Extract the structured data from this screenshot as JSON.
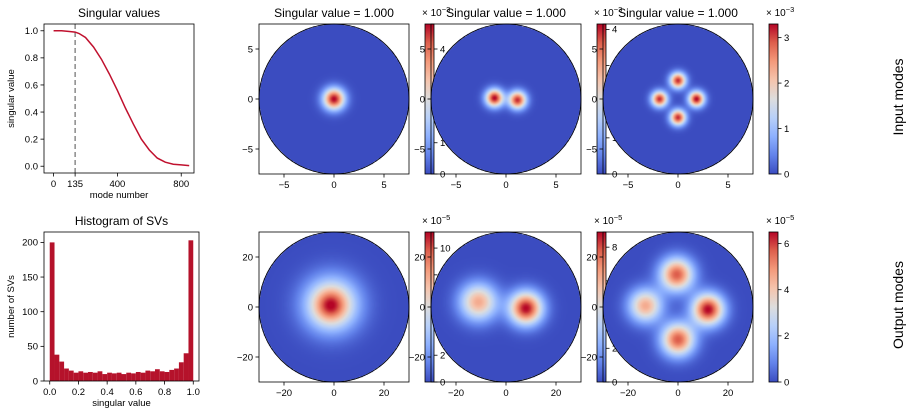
{
  "chart_data": [
    {
      "type": "line",
      "title": "Singular values",
      "xlabel": "mode number",
      "ylabel": "singular value",
      "xlim": [
        -60,
        880
      ],
      "ylim": [
        -0.05,
        1.05
      ],
      "xticks": [
        "0",
        "135",
        "400",
        "800"
      ],
      "yticks": [
        "0.0",
        "0.2",
        "0.4",
        "0.6",
        "0.8",
        "1.0"
      ],
      "vline": {
        "x": 135,
        "style": "dashed",
        "color": "#6e6e6e"
      },
      "color": "#c0112e",
      "x": [
        0,
        50,
        100,
        135,
        160,
        200,
        250,
        300,
        350,
        400,
        450,
        500,
        550,
        600,
        650,
        700,
        750,
        800,
        850
      ],
      "y": [
        1.0,
        1.0,
        0.995,
        0.99,
        0.98,
        0.95,
        0.88,
        0.79,
        0.68,
        0.56,
        0.43,
        0.31,
        0.2,
        0.12,
        0.06,
        0.03,
        0.015,
        0.01,
        0.005
      ]
    },
    {
      "type": "bar",
      "title": "Histogram of SVs",
      "xlabel": "singular value",
      "ylabel": "number of SVs",
      "xlim": [
        -0.04,
        1.04
      ],
      "ylim": [
        0,
        215
      ],
      "xticks": [
        "0.0",
        "0.2",
        "0.4",
        "0.6",
        "0.8",
        "1.0"
      ],
      "yticks": [
        "0",
        "50",
        "100",
        "150",
        "200"
      ],
      "color": "#b5122b",
      "bin_edges": [
        0.0,
        0.0333,
        0.0667,
        0.1,
        0.1333,
        0.1667,
        0.2,
        0.2333,
        0.2667,
        0.3,
        0.3333,
        0.3667,
        0.4,
        0.4333,
        0.4667,
        0.5,
        0.5333,
        0.5667,
        0.6,
        0.6333,
        0.6667,
        0.7,
        0.7333,
        0.7667,
        0.8,
        0.8333,
        0.8667,
        0.9,
        0.9333,
        0.9667,
        1.0
      ],
      "values": [
        200,
        38,
        28,
        18,
        15,
        12,
        14,
        12,
        13,
        12,
        14,
        10,
        12,
        11,
        12,
        10,
        12,
        11,
        13,
        12,
        15,
        14,
        17,
        14,
        13,
        16,
        18,
        27,
        40,
        203
      ]
    },
    {
      "type": "heatmap",
      "row": "input",
      "col": 0,
      "title": "Singular value = 1.000",
      "xlim": [
        -7.5,
        7.5
      ],
      "ylim": [
        -7.5,
        7.5
      ],
      "xticks": [
        -5,
        0,
        5
      ],
      "yticks": [
        -5,
        0,
        5
      ],
      "colorbar": {
        "max": 4.8,
        "ticks": [
          0,
          1,
          2,
          3,
          4
        ],
        "exponent_base": "× 10",
        "exponent": "−3"
      },
      "lobes": [
        {
          "x": 0,
          "y": 0,
          "sigma": 0.75,
          "amp": 1.0
        }
      ]
    },
    {
      "type": "heatmap",
      "row": "input",
      "col": 1,
      "title": "Singular value = 1.000",
      "xlim": [
        -7.5,
        7.5
      ],
      "ylim": [
        -7.5,
        7.5
      ],
      "xticks": [
        -5,
        0,
        5
      ],
      "yticks": [
        -5,
        0,
        5
      ],
      "colorbar": {
        "max": 4.15,
        "ticks": [
          0,
          1,
          2,
          3,
          4
        ],
        "exponent_base": "× 10",
        "exponent": "−3"
      },
      "lobes": [
        {
          "x": -1.15,
          "y": 0.1,
          "sigma": 0.62,
          "amp": 1.0
        },
        {
          "x": 1.15,
          "y": -0.1,
          "sigma": 0.62,
          "amp": 0.95
        }
      ]
    },
    {
      "type": "heatmap",
      "row": "input",
      "col": 2,
      "title": "Singular value = 1.000",
      "xlim": [
        -7.5,
        7.5
      ],
      "ylim": [
        -7.5,
        7.5
      ],
      "xticks": [
        -5,
        0,
        5
      ],
      "yticks": [
        -5,
        0,
        5
      ],
      "colorbar": {
        "max": 3.3,
        "ticks": [
          0,
          1,
          2,
          3
        ],
        "exponent_base": "× 10",
        "exponent": "−3"
      },
      "lobes": [
        {
          "x": 0,
          "y": 1.85,
          "sigma": 0.55,
          "amp": 0.95
        },
        {
          "x": 0,
          "y": -1.85,
          "sigma": 0.55,
          "amp": 0.95
        },
        {
          "x": -1.85,
          "y": 0,
          "sigma": 0.55,
          "amp": 0.95
        },
        {
          "x": 1.85,
          "y": 0,
          "sigma": 0.55,
          "amp": 1.0
        }
      ]
    },
    {
      "type": "heatmap",
      "row": "output",
      "col": 0,
      "title": "",
      "xlim": [
        -30,
        30
      ],
      "ylim": [
        -30,
        30
      ],
      "xticks": [
        -20,
        0,
        20
      ],
      "yticks": [
        -20,
        0,
        20
      ],
      "colorbar": {
        "max": 11.2,
        "ticks": [
          0,
          2,
          4,
          6,
          8,
          10
        ],
        "exponent_base": "× 10",
        "exponent": "−5"
      },
      "lobes": [
        {
          "x": -1,
          "y": 1,
          "sigma": 7.5,
          "amp": 0.72
        },
        {
          "x": -1.5,
          "y": 0.5,
          "sigma": 4.2,
          "amp": 0.3
        }
      ]
    },
    {
      "type": "heatmap",
      "row": "output",
      "col": 1,
      "title": "",
      "xlim": [
        -30,
        30
      ],
      "ylim": [
        -30,
        30
      ],
      "xticks": [
        -20,
        0,
        20
      ],
      "yticks": [
        -20,
        0,
        20
      ],
      "colorbar": {
        "max": 8.9,
        "ticks": [
          0,
          2,
          4,
          6,
          8
        ],
        "exponent_base": "× 10",
        "exponent": "−5"
      },
      "lobes": [
        {
          "x": -11,
          "y": 2,
          "sigma": 5.2,
          "amp": 0.7
        },
        {
          "x": 8,
          "y": -0.5,
          "sigma": 4.6,
          "amp": 1.0
        }
      ]
    },
    {
      "type": "heatmap",
      "row": "output",
      "col": 2,
      "title": "",
      "xlim": [
        -30,
        30
      ],
      "ylim": [
        -30,
        30
      ],
      "xticks": [
        -20,
        0,
        20
      ],
      "yticks": [
        -20,
        0,
        20
      ],
      "colorbar": {
        "max": 6.5,
        "ticks": [
          0,
          2,
          4,
          6
        ],
        "exponent_base": "× 10",
        "exponent": "−5"
      },
      "lobes": [
        {
          "x": -0.5,
          "y": 13,
          "sigma": 4.6,
          "amp": 0.88
        },
        {
          "x": 0,
          "y": -13,
          "sigma": 4.6,
          "amp": 0.88
        },
        {
          "x": -13,
          "y": 0.5,
          "sigma": 4.6,
          "amp": 0.7
        },
        {
          "x": 12,
          "y": -1,
          "sigma": 4.4,
          "amp": 1.0
        }
      ]
    }
  ],
  "row_labels": {
    "input": "Input modes",
    "output": "Output modes"
  },
  "colormap": "coolwarm"
}
